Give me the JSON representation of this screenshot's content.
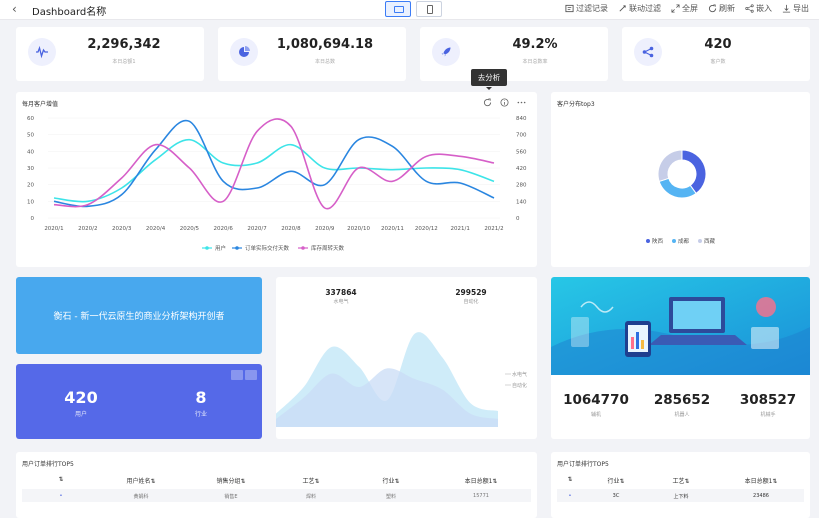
{
  "header": {
    "back_glyph": "‹",
    "title": "Dashboard名称",
    "modes": [
      {
        "name": "desktop-mode",
        "active": true
      },
      {
        "name": "mobile-mode",
        "active": false
      }
    ],
    "toolbar": [
      {
        "label": "过滤记录",
        "icon": "filter-record-icon"
      },
      {
        "label": "联动过滤",
        "icon": "linked-filter-icon"
      },
      {
        "label": "全屏",
        "icon": "fullscreen-icon"
      },
      {
        "label": "刷新",
        "icon": "refresh-icon"
      },
      {
        "label": "嵌入",
        "icon": "embed-icon"
      },
      {
        "label": "导出",
        "icon": "export-icon"
      }
    ]
  },
  "kpis": [
    {
      "value": "2,296,342",
      "label": "本日总额1",
      "icon": "waveform-icon"
    },
    {
      "value": "1,080,694.18",
      "label": "本日总数",
      "icon": "pie-icon"
    },
    {
      "value": "49.2%",
      "label": "本日总数率",
      "icon": "rocket-icon"
    },
    {
      "value": "420",
      "label": "客户数",
      "icon": "share-icon"
    }
  ],
  "line_card": {
    "title": "每月客户增值",
    "tooltip": "去分析",
    "tools": [
      "refresh-icon",
      "info-icon",
      "more-icon"
    ]
  },
  "pie_card": {
    "title": "客户分布top3"
  },
  "banner": {
    "text": "衡石 - 新一代云原生的商业分析架构开创者"
  },
  "kpi2": {
    "items": [
      {
        "value": "420",
        "label": "用户"
      },
      {
        "value": "8",
        "label": "行业"
      }
    ]
  },
  "area_card": {
    "items": [
      {
        "value": "337864",
        "label": "水电气"
      },
      {
        "value": "299529",
        "label": "自动化"
      }
    ],
    "legend": [
      "水电气",
      "自动化"
    ]
  },
  "img_card": {
    "items": [
      {
        "value": "1064770",
        "label": "辅机"
      },
      {
        "value": "285652",
        "label": "机器人"
      },
      {
        "value": "308527",
        "label": "机械手"
      }
    ]
  },
  "table1": {
    "title": "用户订单排行TOP5",
    "headers": [
      "⇅",
      "用户姓名⇅",
      "销售分组⇅",
      "工艺⇅",
      "行业⇅",
      "本日总额1⇅"
    ],
    "row": [
      "•",
      "黄娟科",
      "销售E",
      "焊料",
      "塑料",
      "15771"
    ]
  },
  "table2": {
    "title": "用户订单排行TOP5",
    "headers": [
      "⇅",
      "行业⇅",
      "工艺⇅",
      "本日总额1⇅"
    ],
    "row": [
      "•",
      "3C",
      "上下料",
      "23486"
    ]
  },
  "chart_data": [
    {
      "type": "line",
      "title": "每月客户增值",
      "x": [
        "2020/1",
        "2020/2",
        "2020/3",
        "2020/4",
        "2020/5",
        "2020/6",
        "2020/7",
        "2020/8",
        "2020/9",
        "2020/10",
        "2020/11",
        "2020/12",
        "2021/1",
        "2021/2"
      ],
      "yticks_left": [
        "0",
        "10",
        "20",
        "30",
        "40",
        "50",
        "60"
      ],
      "yticks_right": [
        "0",
        "140",
        "280",
        "420",
        "560",
        "700",
        "840"
      ],
      "ylim_left": [
        0,
        60
      ],
      "ylim_right": [
        0,
        840
      ],
      "series": [
        {
          "name": "用户",
          "axis": "left",
          "color": "#3de4e8",
          "values": [
            12,
            10,
            18,
            35,
            47,
            33,
            33,
            44,
            30,
            30,
            29,
            30,
            29,
            22
          ]
        },
        {
          "name": "订单实际交付天数",
          "axis": "left",
          "color": "#2a86e0",
          "values": [
            10,
            7,
            14,
            41,
            58,
            22,
            18,
            28,
            20,
            47,
            43,
            22,
            21,
            12
          ]
        },
        {
          "name": "库存周转天数",
          "axis": "left",
          "color": "#d65fc8",
          "values": [
            8,
            8,
            24,
            44,
            30,
            10,
            52,
            55,
            6,
            30,
            22,
            37,
            37,
            33
          ]
        }
      ],
      "legend_position": "bottom"
    },
    {
      "type": "pie",
      "title": "客户分布top3",
      "categories": [
        "陕西",
        "成都",
        "西藏"
      ],
      "values": [
        40,
        30,
        30
      ],
      "colors": [
        "#4a63e0",
        "#55b4f3",
        "#c6cde8"
      ],
      "donut": true,
      "legend_position": "bottom"
    },
    {
      "type": "area",
      "series": [
        {
          "name": "水电气",
          "color": "#bfe6f7",
          "values": [
            10,
            30,
            60,
            45,
            20,
            70,
            52,
            18,
            12
          ]
        },
        {
          "name": "自动化",
          "color": "#c9dcf6",
          "values": [
            6,
            22,
            40,
            30,
            44,
            36,
            28,
            10,
            6
          ]
        }
      ]
    }
  ]
}
